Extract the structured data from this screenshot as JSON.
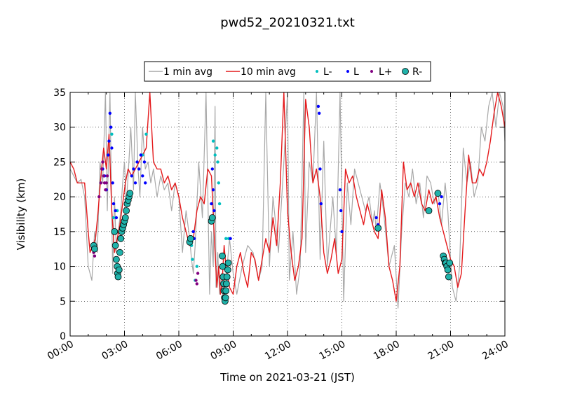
{
  "chart_data": {
    "type": "line",
    "title": "pwd52_20210321.txt",
    "xlabel": "Time on 2021-03-21 (JST)",
    "ylabel": "Visibility (km)",
    "xlim": [
      0,
      24
    ],
    "ylim": [
      0,
      35
    ],
    "x_unit": "hours",
    "x_ticks": [
      {
        "value": 0,
        "label": "00:00"
      },
      {
        "value": 3,
        "label": "03:00"
      },
      {
        "value": 6,
        "label": "06:00"
      },
      {
        "value": 9,
        "label": "09:00"
      },
      {
        "value": 12,
        "label": "12:00"
      },
      {
        "value": 15,
        "label": "15:00"
      },
      {
        "value": 18,
        "label": "18:00"
      },
      {
        "value": 21,
        "label": "21:00"
      },
      {
        "value": 24,
        "label": "24:00"
      }
    ],
    "y_ticks": [
      0,
      5,
      10,
      15,
      20,
      25,
      30,
      35
    ],
    "grid": true,
    "legend_position": "top-center",
    "series": [
      {
        "name": "1 min avg",
        "kind": "line",
        "color": "#a8a8a8",
        "x": [
          0,
          0.2,
          0.4,
          0.6,
          0.8,
          1.0,
          1.2,
          1.35,
          1.5,
          1.65,
          1.8,
          1.95,
          2.05,
          2.2,
          2.35,
          2.45,
          2.55,
          2.7,
          2.8,
          2.9,
          3.0,
          3.1,
          3.2,
          3.35,
          3.5,
          3.6,
          3.75,
          3.85,
          4.0,
          4.15,
          4.3,
          4.45,
          4.6,
          4.8,
          5.0,
          5.2,
          5.4,
          5.6,
          5.8,
          6.0,
          6.2,
          6.4,
          6.6,
          6.7,
          6.8,
          6.9,
          7.1,
          7.3,
          7.5,
          7.7,
          7.8,
          7.9,
          8.0,
          8.05,
          8.15,
          8.25,
          8.35,
          8.45,
          8.6,
          8.8,
          9.0,
          9.2,
          9.5,
          9.8,
          10.1,
          10.4,
          10.6,
          10.8,
          11.0,
          11.2,
          11.5,
          11.8,
          12.0,
          12.1,
          12.3,
          12.5,
          12.7,
          12.9,
          13.0,
          13.2,
          13.4,
          13.6,
          13.8,
          14.0,
          14.2,
          14.5,
          14.7,
          14.9,
          15.1,
          15.3,
          15.5,
          15.7,
          15.9,
          16.1,
          16.3,
          16.5,
          16.7,
          16.8,
          16.9,
          17.1,
          17.3,
          17.6,
          17.9,
          18.1,
          18.3,
          18.5,
          18.7,
          18.9,
          19.1,
          19.3,
          19.5,
          19.7,
          19.9,
          20.1,
          20.3,
          20.5,
          20.7,
          20.85,
          21.0,
          21.1,
          21.3,
          21.5,
          21.7,
          21.9,
          22.1,
          22.3,
          22.5,
          22.7,
          22.9,
          23.1,
          23.3,
          23.5,
          23.7,
          23.9,
          24.0
        ],
        "y": [
          24,
          23,
          22,
          22.5,
          20,
          10,
          8,
          15,
          12,
          25,
          22,
          35,
          18,
          35,
          9,
          20,
          12,
          16,
          18,
          22,
          25,
          19,
          23,
          30,
          21,
          35,
          24,
          20,
          30,
          24,
          25,
          22,
          24,
          20,
          23,
          21,
          22,
          18,
          22,
          20,
          12,
          18,
          14,
          11,
          9,
          13,
          25,
          17,
          35,
          6,
          15,
          10,
          33,
          7,
          12,
          6,
          9,
          5,
          8,
          14,
          9,
          6,
          10,
          13,
          12,
          8,
          10,
          35,
          10,
          20,
          12,
          25,
          35,
          8,
          15,
          6,
          10,
          35,
          12,
          25,
          22,
          35,
          11,
          28,
          10,
          20,
          12,
          35,
          5,
          22,
          16,
          24,
          22,
          20,
          18,
          20,
          16,
          18,
          15,
          22,
          18,
          10,
          13,
          4,
          15,
          22,
          20,
          24,
          19,
          22,
          17,
          23,
          22,
          19,
          21,
          16,
          22,
          18,
          11,
          7,
          5,
          10,
          27,
          22,
          25,
          20,
          22,
          30,
          28,
          33,
          35,
          30,
          35,
          33,
          28
        ],
        "values": [
          24,
          23,
          22,
          22.5,
          20,
          10,
          8,
          15,
          12,
          25,
          22,
          35,
          18,
          35,
          9,
          20,
          12,
          16,
          18,
          22,
          25,
          19,
          23,
          30,
          21,
          35,
          24,
          20,
          30,
          24,
          25,
          22,
          24,
          20,
          23,
          21,
          22,
          18,
          22,
          20,
          12,
          18,
          14,
          11,
          9,
          13,
          25,
          17,
          35,
          6,
          15,
          10,
          33,
          7,
          12,
          6,
          9,
          5,
          8,
          14,
          9,
          6,
          10,
          13,
          12,
          8,
          10,
          35,
          10,
          20,
          12,
          25,
          35,
          8,
          15,
          6,
          10,
          35,
          12,
          25,
          22,
          35,
          11,
          28,
          10,
          20,
          12,
          35,
          5,
          22,
          16,
          24,
          22,
          20,
          18,
          20,
          16,
          18,
          15,
          22,
          18,
          10,
          13,
          4,
          15,
          22,
          20,
          24,
          19,
          22,
          17,
          23,
          22,
          19,
          21,
          16,
          22,
          18,
          11,
          7,
          5,
          10,
          27,
          22,
          25,
          20,
          22,
          30,
          28,
          33,
          35,
          30,
          35,
          33,
          28
        ]
      },
      {
        "name": "10 min avg",
        "kind": "line",
        "color": "#e41a1c",
        "x": [
          0,
          0.2,
          0.4,
          0.6,
          0.8,
          1.0,
          1.1,
          1.25,
          1.4,
          1.55,
          1.7,
          1.85,
          2.0,
          2.15,
          2.3,
          2.45,
          2.6,
          2.75,
          2.9,
          3.05,
          3.2,
          3.4,
          3.6,
          3.8,
          4.0,
          4.2,
          4.4,
          4.6,
          4.8,
          5.0,
          5.2,
          5.4,
          5.6,
          5.8,
          6.0,
          6.2,
          6.4,
          6.6,
          6.8,
          7.0,
          7.2,
          7.4,
          7.6,
          7.8,
          8.0,
          8.1,
          8.2,
          8.3,
          8.4,
          8.5,
          8.6,
          8.8,
          9.0,
          9.2,
          9.4,
          9.6,
          9.8,
          10.0,
          10.2,
          10.4,
          10.6,
          10.8,
          11.0,
          11.2,
          11.4,
          11.6,
          11.8,
          12.0,
          12.2,
          12.4,
          12.6,
          12.8,
          13.0,
          13.2,
          13.4,
          13.6,
          13.8,
          14.0,
          14.2,
          14.4,
          14.6,
          14.8,
          15.0,
          15.2,
          15.4,
          15.6,
          15.8,
          16.0,
          16.2,
          16.4,
          16.6,
          16.8,
          17.0,
          17.2,
          17.4,
          17.6,
          17.8,
          18.0,
          18.2,
          18.4,
          18.6,
          18.8,
          19.0,
          19.2,
          19.4,
          19.6,
          19.8,
          20.0,
          20.2,
          20.4,
          20.6,
          20.8,
          21.0,
          21.2,
          21.4,
          21.6,
          21.8,
          22.0,
          22.2,
          22.4,
          22.6,
          22.8,
          23.0,
          23.2,
          23.4,
          23.6,
          23.8,
          24.0
        ],
        "y": [
          25,
          24,
          22,
          22,
          22,
          15,
          12,
          13,
          14,
          18,
          23,
          27,
          24,
          29,
          18,
          12,
          14,
          16,
          19,
          22,
          24,
          23,
          24,
          25,
          26,
          27,
          35,
          25,
          24,
          24,
          22,
          23,
          21,
          22,
          20,
          17,
          15,
          13,
          14,
          18,
          20,
          19,
          24,
          23,
          12,
          7,
          10,
          6,
          8,
          13,
          10,
          7,
          6,
          10,
          12,
          9,
          7,
          12,
          11,
          8,
          11,
          14,
          12,
          17,
          13,
          22,
          35,
          18,
          12,
          8,
          10,
          14,
          34,
          30,
          22,
          24,
          20,
          12,
          9,
          11,
          14,
          9,
          11,
          24,
          22,
          23,
          20,
          18,
          16,
          19,
          17,
          15,
          14,
          21,
          17,
          10,
          8,
          5,
          10,
          25,
          21,
          22,
          20,
          22,
          19,
          18,
          21,
          19,
          20,
          17,
          15,
          13,
          11,
          10,
          7,
          9,
          18,
          26,
          22,
          22,
          24,
          23,
          25,
          28,
          32,
          35,
          33,
          30
        ]
      },
      {
        "name": "L-",
        "kind": "scatter",
        "color": "#00bfbf",
        "points": [
          [
            2.3,
            29
          ],
          [
            2.4,
            17
          ],
          [
            2.6,
            18
          ],
          [
            4.0,
            26
          ],
          [
            4.2,
            29
          ],
          [
            6.7,
            13
          ],
          [
            6.75,
            11
          ],
          [
            6.9,
            8
          ],
          [
            7.0,
            10
          ],
          [
            7.9,
            28
          ],
          [
            8.0,
            26
          ],
          [
            8.1,
            27
          ],
          [
            8.15,
            25
          ],
          [
            8.2,
            22
          ],
          [
            8.25,
            19
          ],
          [
            8.6,
            14
          ],
          [
            8.75,
            14
          ]
        ]
      },
      {
        "name": "L",
        "kind": "scatter",
        "color": "#0000ff",
        "points": [
          [
            1.8,
            24
          ],
          [
            1.9,
            23
          ],
          [
            2.0,
            21
          ],
          [
            2.1,
            26
          ],
          [
            2.15,
            28
          ],
          [
            2.2,
            32
          ],
          [
            2.25,
            30
          ],
          [
            2.3,
            27
          ],
          [
            2.35,
            22
          ],
          [
            2.4,
            19
          ],
          [
            2.5,
            18
          ],
          [
            2.55,
            17
          ],
          [
            3.4,
            23
          ],
          [
            3.5,
            24
          ],
          [
            3.6,
            22
          ],
          [
            3.7,
            25
          ],
          [
            3.8,
            24
          ],
          [
            3.9,
            26
          ],
          [
            4.0,
            23
          ],
          [
            4.1,
            25
          ],
          [
            4.15,
            22
          ],
          [
            6.8,
            15
          ],
          [
            6.85,
            14
          ],
          [
            7.8,
            19
          ],
          [
            7.85,
            24
          ],
          [
            7.9,
            21
          ],
          [
            7.95,
            18
          ],
          [
            8.85,
            14
          ],
          [
            13.7,
            33
          ],
          [
            13.75,
            32
          ],
          [
            13.8,
            24
          ],
          [
            13.85,
            19
          ],
          [
            14.9,
            21
          ],
          [
            14.95,
            18
          ],
          [
            15.0,
            15
          ],
          [
            16.9,
            17
          ],
          [
            17.0,
            16
          ],
          [
            20.4,
            19
          ],
          [
            20.5,
            20
          ]
        ]
      },
      {
        "name": "L+",
        "kind": "scatter",
        "color": "#800080",
        "points": [
          [
            1.3,
            12
          ],
          [
            1.35,
            11.5
          ],
          [
            1.6,
            20
          ],
          [
            1.7,
            22
          ],
          [
            1.75,
            24
          ],
          [
            1.8,
            25
          ],
          [
            1.85,
            23
          ],
          [
            1.9,
            22
          ],
          [
            1.95,
            21
          ],
          [
            2.0,
            22
          ],
          [
            2.05,
            23
          ],
          [
            6.95,
            8
          ],
          [
            7.0,
            7.5
          ],
          [
            7.05,
            9
          ]
        ]
      },
      {
        "name": "R-",
        "kind": "scatter",
        "color": "#20b2aa",
        "points": [
          [
            1.3,
            13
          ],
          [
            1.35,
            12.5
          ],
          [
            2.45,
            15
          ],
          [
            2.5,
            13
          ],
          [
            2.55,
            11
          ],
          [
            2.6,
            10
          ],
          [
            2.62,
            9
          ],
          [
            2.65,
            8.5
          ],
          [
            2.7,
            9.5
          ],
          [
            2.75,
            12
          ],
          [
            2.8,
            14
          ],
          [
            2.85,
            15
          ],
          [
            2.9,
            15.5
          ],
          [
            2.95,
            16
          ],
          [
            3.0,
            16.5
          ],
          [
            3.05,
            17
          ],
          [
            3.1,
            18
          ],
          [
            3.15,
            19
          ],
          [
            3.2,
            19.5
          ],
          [
            3.25,
            20
          ],
          [
            3.3,
            20.5
          ],
          [
            6.6,
            13.5
          ],
          [
            6.65,
            14
          ],
          [
            7.8,
            16.5
          ],
          [
            7.85,
            17
          ],
          [
            8.4,
            11.5
          ],
          [
            8.42,
            10
          ],
          [
            8.45,
            8.5
          ],
          [
            8.48,
            7.5
          ],
          [
            8.5,
            6.5
          ],
          [
            8.52,
            5.5
          ],
          [
            8.55,
            5
          ],
          [
            8.58,
            5.5
          ],
          [
            8.6,
            6.5
          ],
          [
            8.63,
            7.5
          ],
          [
            8.66,
            8.5
          ],
          [
            8.7,
            9.5
          ],
          [
            8.73,
            10.5
          ],
          [
            17.0,
            15.5
          ],
          [
            19.8,
            18
          ],
          [
            20.3,
            20.5
          ],
          [
            20.6,
            11.5
          ],
          [
            20.65,
            11
          ],
          [
            20.7,
            10.5
          ],
          [
            20.75,
            10.5
          ],
          [
            20.8,
            10
          ],
          [
            20.85,
            9.5
          ],
          [
            20.9,
            8.5
          ],
          [
            20.95,
            10.5
          ]
        ]
      }
    ]
  }
}
